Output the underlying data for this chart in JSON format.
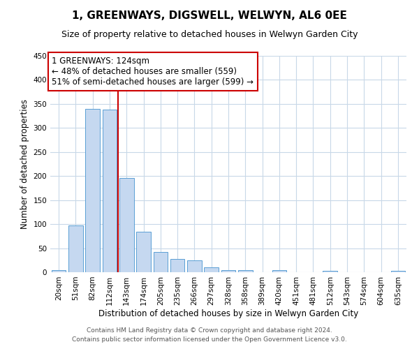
{
  "title": "1, GREENWAYS, DIGSWELL, WELWYN, AL6 0EE",
  "subtitle": "Size of property relative to detached houses in Welwyn Garden City",
  "xlabel": "Distribution of detached houses by size in Welwyn Garden City",
  "ylabel": "Number of detached properties",
  "bar_labels": [
    "20sqm",
    "51sqm",
    "82sqm",
    "112sqm",
    "143sqm",
    "174sqm",
    "205sqm",
    "235sqm",
    "266sqm",
    "297sqm",
    "328sqm",
    "358sqm",
    "389sqm",
    "420sqm",
    "451sqm",
    "481sqm",
    "512sqm",
    "543sqm",
    "574sqm",
    "604sqm",
    "635sqm"
  ],
  "bar_values": [
    5,
    97,
    340,
    338,
    196,
    84,
    42,
    27,
    24,
    10,
    5,
    4,
    0,
    5,
    0,
    0,
    3,
    0,
    0,
    0,
    3
  ],
  "bar_color": "#c5d8f0",
  "bar_edge_color": "#5a9fd4",
  "vline_x": 3.5,
  "vline_color": "#cc0000",
  "ylim": [
    0,
    450
  ],
  "yticks": [
    0,
    50,
    100,
    150,
    200,
    250,
    300,
    350,
    400,
    450
  ],
  "annotation_text": "1 GREENWAYS: 124sqm\n← 48% of detached houses are smaller (559)\n51% of semi-detached houses are larger (599) →",
  "annotation_box_edge": "#cc0000",
  "footer_line1": "Contains HM Land Registry data © Crown copyright and database right 2024.",
  "footer_line2": "Contains public sector information licensed under the Open Government Licence v3.0.",
  "bg_color": "#ffffff",
  "grid_color": "#c8d8e8",
  "title_fontsize": 11,
  "subtitle_fontsize": 9,
  "annotation_fontsize": 8.5,
  "tick_fontsize": 7.5,
  "axis_label_fontsize": 8.5,
  "footer_fontsize": 6.5
}
